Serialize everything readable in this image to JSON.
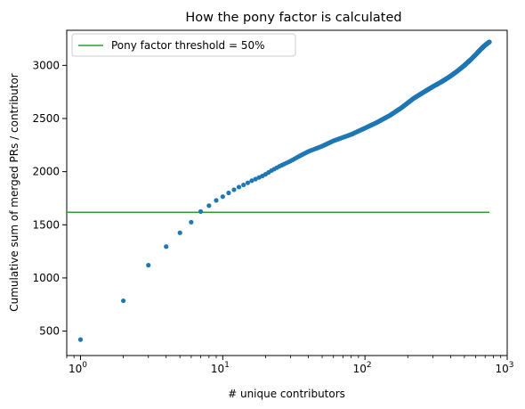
{
  "chart_data": {
    "type": "scatter",
    "title": "How the pony factor is calculated",
    "xlabel": "# unique contributors",
    "ylabel": "Cumulative sum of merged PRs / contributor",
    "x_scale": "log",
    "xlim": [
      0.8,
      1000
    ],
    "ylim": [
      270,
      3330
    ],
    "x_ticks": [
      {
        "value": 1,
        "base": "10",
        "exp": "0"
      },
      {
        "value": 10,
        "base": "10",
        "exp": "1"
      },
      {
        "value": 100,
        "base": "10",
        "exp": "2"
      },
      {
        "value": 1000,
        "base": "10",
        "exp": "3"
      }
    ],
    "y_ticks": [
      500,
      1000,
      1500,
      2000,
      2500,
      3000
    ],
    "grid": false,
    "legend_position": "top-left",
    "series": [
      {
        "type": "scatter",
        "color": "#1f77b4",
        "x": [
          1,
          2,
          3,
          4,
          5,
          6,
          7,
          8,
          9,
          10,
          11,
          12,
          13,
          14,
          15,
          16,
          17,
          18,
          19,
          20,
          22,
          25,
          30,
          35,
          40,
          50,
          60,
          80,
          100,
          120,
          150,
          180,
          220,
          260,
          300,
          350,
          400,
          450,
          500,
          550,
          600,
          650,
          700,
          730,
          750
        ],
        "y": [
          420,
          785,
          1120,
          1295,
          1425,
          1525,
          1625,
          1680,
          1730,
          1765,
          1800,
          1830,
          1855,
          1875,
          1895,
          1915,
          1930,
          1945,
          1960,
          1975,
          2010,
          2050,
          2100,
          2150,
          2190,
          2240,
          2290,
          2350,
          2410,
          2460,
          2530,
          2600,
          2690,
          2750,
          2800,
          2850,
          2900,
          2950,
          3000,
          3050,
          3100,
          3150,
          3190,
          3210,
          3220
        ]
      },
      {
        "name": "Pony factor threshold = 50%",
        "type": "hline",
        "color": "#2ca02c",
        "y": 1618,
        "x_range": [
          0.8,
          750
        ]
      }
    ]
  }
}
